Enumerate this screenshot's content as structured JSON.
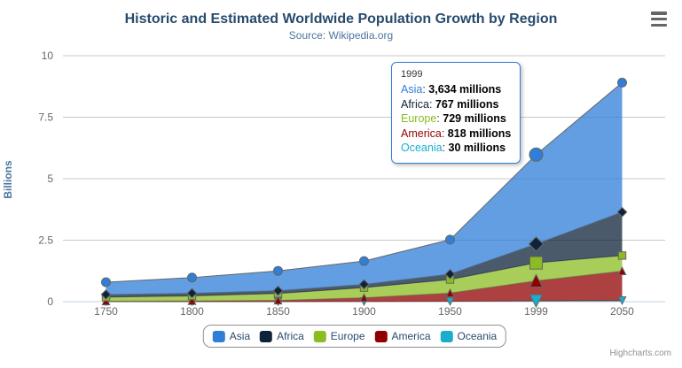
{
  "header": {
    "title": "Historic and Estimated Worldwide Population Growth by Region",
    "subtitle": "Source: Wikipedia.org"
  },
  "menu": {
    "context_button": "chart-context-menu"
  },
  "axes": {
    "y_title": "Billions"
  },
  "tooltip": {
    "category": "1999",
    "separator": ": ",
    "rows": [
      {
        "value": "3,634 millions"
      },
      {
        "value": "767 millions"
      },
      {
        "value": "729 millions"
      },
      {
        "value": "818 millions"
      },
      {
        "value": "30 millions"
      }
    ]
  },
  "credits": {
    "label": "Highcharts.com"
  },
  "chart_data": {
    "type": "area",
    "stacking": "normal",
    "title": "Historic and Estimated Worldwide Population Growth by Region",
    "subtitle": "Source: Wikipedia.org",
    "categories": [
      "1750",
      "1800",
      "1850",
      "1900",
      "1950",
      "1999",
      "2050"
    ],
    "series": [
      {
        "name": "Asia",
        "color": "#2f7ed8",
        "marker": "circle",
        "values": [
          502,
          635,
          809,
          947,
          1402,
          3634,
          5268
        ]
      },
      {
        "name": "Africa",
        "color": "#0d233a",
        "marker": "diamond",
        "values": [
          106,
          107,
          111,
          133,
          221,
          767,
          1766
        ]
      },
      {
        "name": "Europe",
        "color": "#8bbc21",
        "marker": "square",
        "values": [
          163,
          203,
          276,
          408,
          547,
          729,
          628
        ]
      },
      {
        "name": "America",
        "color": "#910000",
        "marker": "triangle",
        "values": [
          18,
          31,
          54,
          156,
          339,
          818,
          1201
        ]
      },
      {
        "name": "Oceania",
        "color": "#1aadce",
        "marker": "triangle-down",
        "values": [
          2,
          2,
          2,
          6,
          13,
          30,
          46
        ]
      }
    ],
    "values_unit": "millions",
    "ylabel": "Billions",
    "ylim": [
      0,
      10
    ],
    "yticks": [
      0,
      2.5,
      5,
      7.5,
      10
    ],
    "ytick_labels": [
      "0",
      "2.5",
      "5",
      "7.5",
      "10"
    ],
    "grid": true,
    "legend_position": "bottom",
    "hover_category_index": 5,
    "line_color": "#666666",
    "fill_opacity": 0.75,
    "grid_color": "#c8c8c8",
    "axis_line_color": "#c0d0e0",
    "tick_label_color": "#666666"
  }
}
